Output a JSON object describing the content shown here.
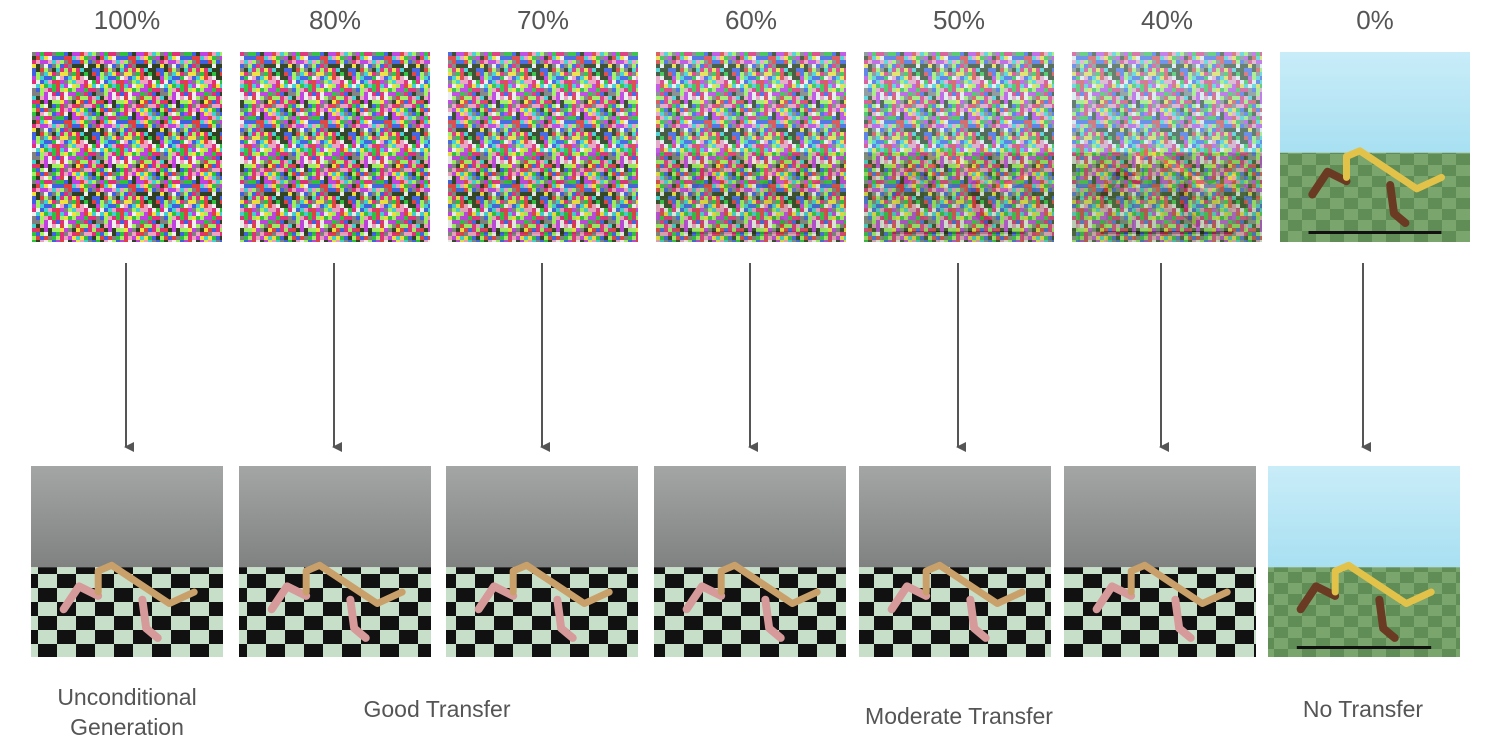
{
  "columns": [
    {
      "label": "100%"
    },
    {
      "label": "80%"
    },
    {
      "label": "70%"
    },
    {
      "label": "60%"
    },
    {
      "label": "50%"
    },
    {
      "label": "40%"
    },
    {
      "label": "0%"
    }
  ],
  "captions": [
    {
      "text": "Unconditional Generation"
    },
    {
      "text": "Good Transfer"
    },
    {
      "text": "Moderate Transfer"
    },
    {
      "text": "No Transfer"
    }
  ]
}
